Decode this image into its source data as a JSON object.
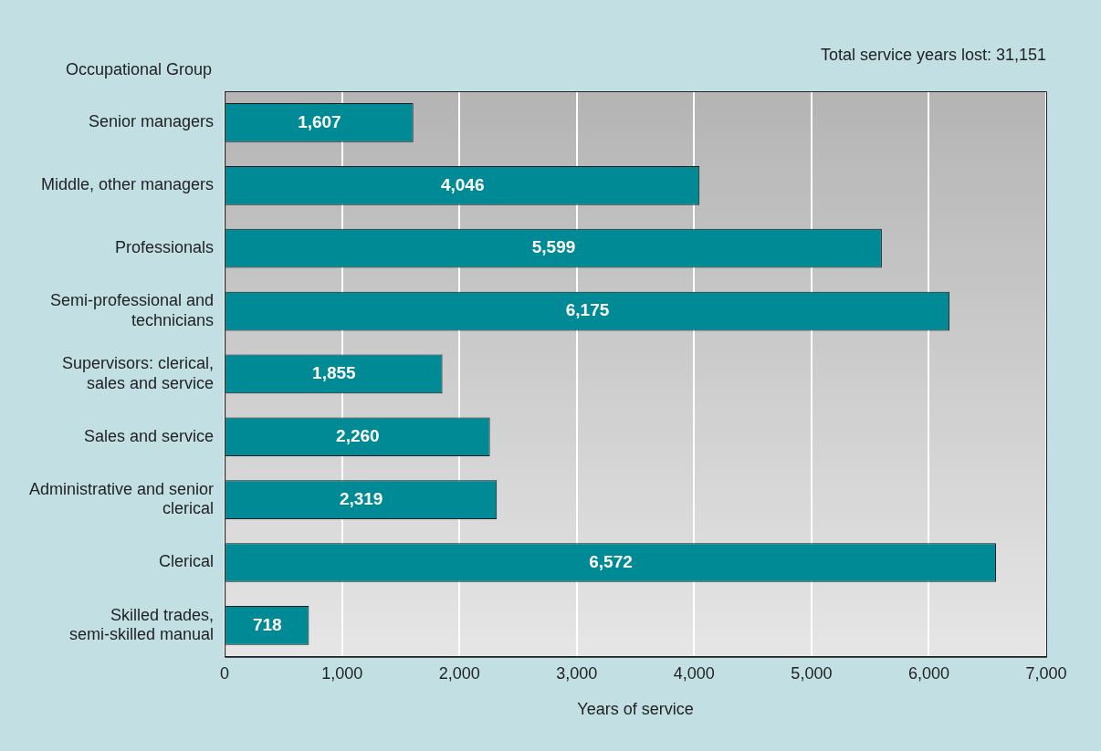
{
  "chart_data": {
    "type": "bar",
    "orientation": "horizontal",
    "ylabel": "Occupational Group",
    "xlabel": "Years of service",
    "annotations": [
      "Total service years lost: 31,151"
    ],
    "categories": [
      "Senior managers",
      "Middle, other managers",
      "Professionals",
      "Semi-professional and technicians",
      "Supervisors: clerical, sales and service",
      "Sales and service",
      "Administrative and senior clerical",
      "Clerical",
      "Skilled trades, semi-skilled manual"
    ],
    "values": [
      1607,
      4046,
      5599,
      6175,
      1855,
      2260,
      2319,
      6572,
      718
    ],
    "value_labels": [
      "1,607",
      "4,046",
      "5,599",
      "6,175",
      "1,855",
      "2,260",
      "2,319",
      "6,572",
      "718"
    ],
    "color": "#008a96",
    "xlim": [
      0,
      7000
    ],
    "xticks": [
      0,
      {
        "value": 1000,
        "label": "1,000"
      },
      {
        "value": 2000,
        "label": "2,000"
      },
      {
        "value": 3000,
        "label": "3,000"
      },
      {
        "value": 4000,
        "label": "4,000"
      },
      {
        "value": 5000,
        "label": "5,000"
      },
      {
        "value": 6000,
        "label": "6,000"
      },
      {
        "value": 7000,
        "label": "7,000"
      }
    ],
    "grid": "x",
    "legend": false
  }
}
